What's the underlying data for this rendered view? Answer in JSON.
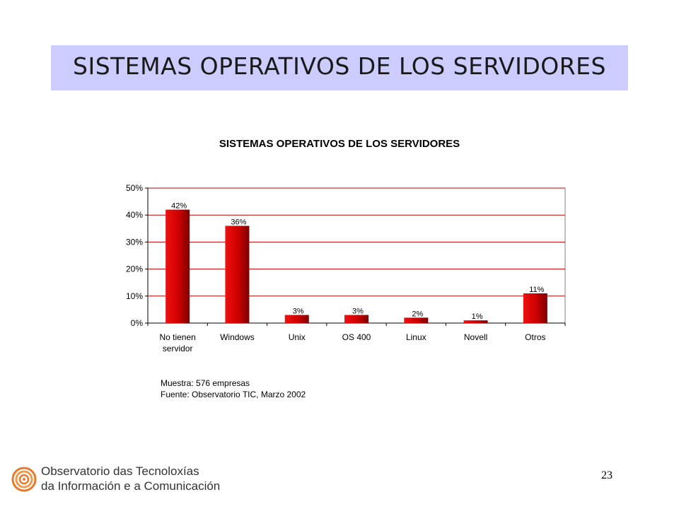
{
  "slide": {
    "title": "SISTEMAS OPERATIVOS DE LOS SERVIDORES",
    "page_number": "23"
  },
  "notes": {
    "sample": "Muestra: 576 empresas",
    "source": "Fuente: Observatorio TIC, Marzo 2002"
  },
  "logo": {
    "line1": "Observatorio das Tecnoloxías",
    "line2": "da Información e a Comunicación",
    "colors": {
      "outer": "#e8792c",
      "inner": "#f6a55c"
    }
  },
  "chart_data": {
    "type": "bar",
    "title": "SISTEMAS OPERATIVOS DE LOS SERVIDORES",
    "xlabel": "",
    "ylabel": "",
    "categories": [
      [
        "No tienen",
        "servidor"
      ],
      [
        "Windows"
      ],
      [
        "Unix"
      ],
      [
        "OS 400"
      ],
      [
        "Linux"
      ],
      [
        "Novell"
      ],
      [
        "Otros"
      ]
    ],
    "values": [
      42,
      36,
      3,
      3,
      2,
      1,
      11
    ],
    "value_labels": [
      "42%",
      "36%",
      "3%",
      "3%",
      "2%",
      "1%",
      "11%"
    ],
    "ylim": [
      0,
      50
    ],
    "yticks": [
      0,
      10,
      20,
      30,
      40,
      50
    ],
    "ytick_labels": [
      "0%",
      "10%",
      "20%",
      "30%",
      "40%",
      "50%"
    ],
    "grid": true,
    "legend": "none",
    "colors": {
      "bar": "#ee1111",
      "bar_dark": "#8b0000",
      "grid": "#c00000",
      "axis": "#000000"
    }
  }
}
